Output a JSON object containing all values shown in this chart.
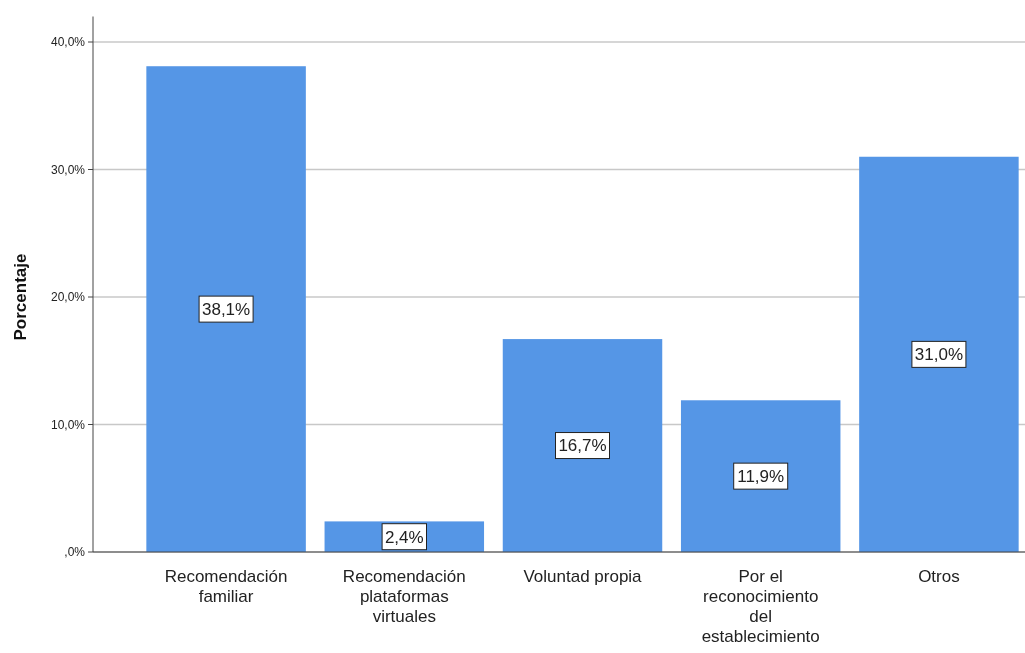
{
  "chart_data": {
    "type": "bar",
    "ylabel": "Porcentaje",
    "categories": [
      "Recomendación familiar",
      "Recomendación plataformas virtuales",
      "Voluntad propia",
      "Por el reconocimiento del establecimiento",
      "Otros"
    ],
    "values": [
      38.1,
      2.4,
      16.7,
      11.9,
      31.0
    ],
    "value_labels": [
      "38,1%",
      "2,4%",
      "16,7%",
      "11,9%",
      "31,0%"
    ],
    "color": "#5596e6",
    "ylim": [
      0,
      42
    ],
    "yticks": [
      {
        "value": 0,
        "label": ",0%"
      },
      {
        "value": 10,
        "label": "10,0%"
      },
      {
        "value": 20,
        "label": "20,0%"
      },
      {
        "value": 30,
        "label": "30,0%"
      },
      {
        "value": 40,
        "label": "40,0%"
      }
    ],
    "grid": "y"
  }
}
